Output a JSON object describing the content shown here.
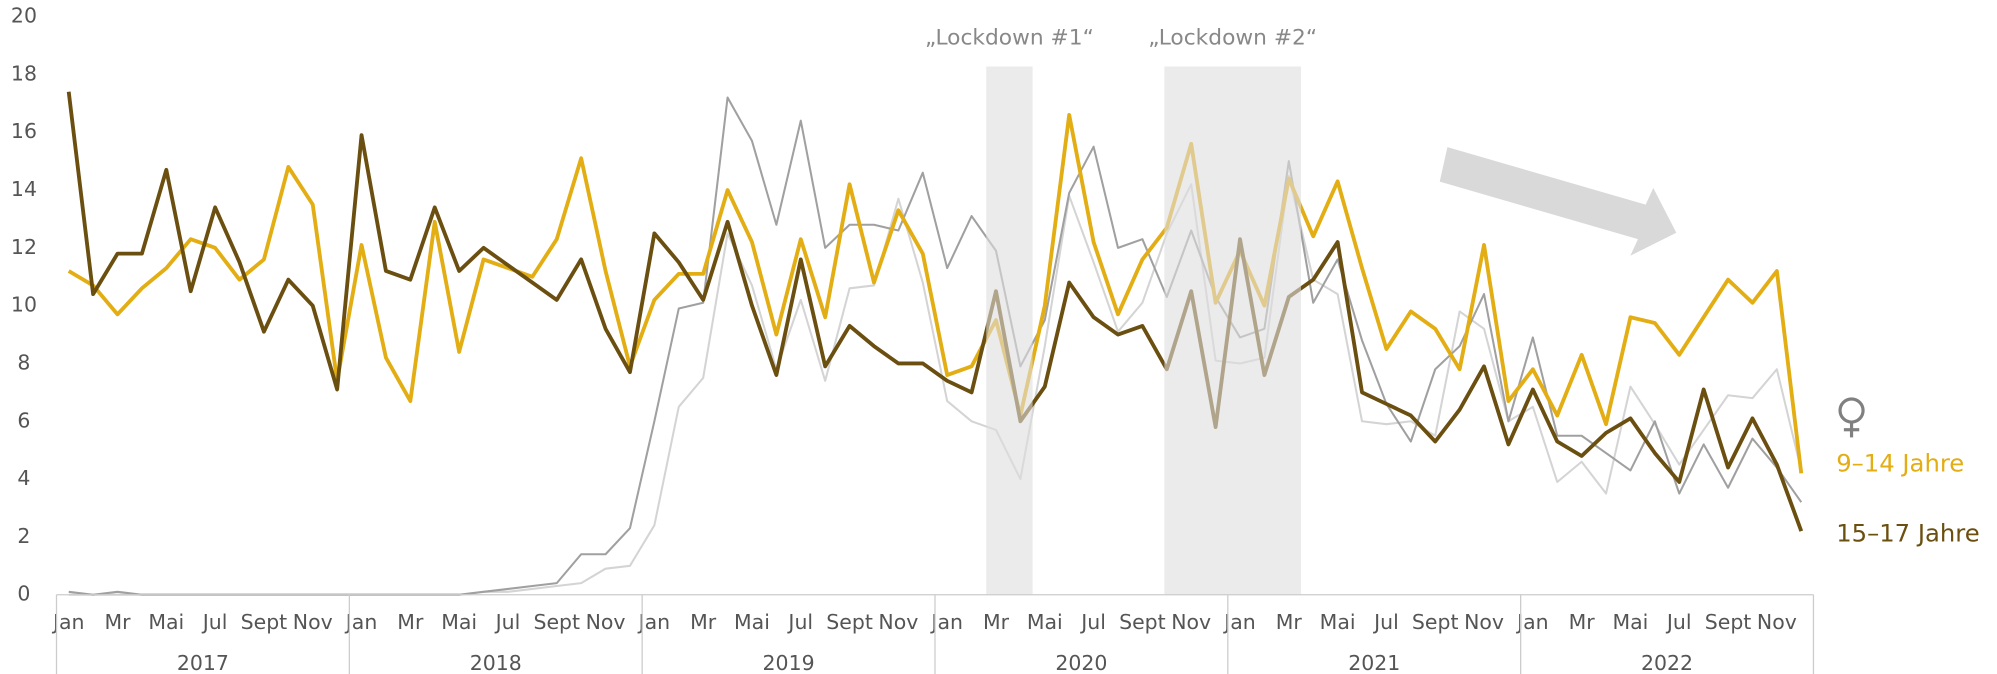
{
  "chart_data": {
    "type": "line",
    "categories": [
      "Jan",
      null,
      "Mr",
      null,
      "Mai",
      null,
      "Jul",
      null,
      "Sept",
      null,
      "Nov",
      null,
      "Jan",
      null,
      "Mr",
      null,
      "Mai",
      null,
      "Jul",
      null,
      "Sept",
      null,
      "Nov",
      null,
      "Jan",
      null,
      "Mr",
      null,
      "Mai",
      null,
      "Jul",
      null,
      "Sept",
      null,
      "Nov",
      null,
      "Jan",
      null,
      "Mr",
      null,
      "Mai",
      null,
      "Jul",
      null,
      "Sept",
      null,
      "Nov",
      null,
      "Jan",
      null,
      "Mr",
      null,
      "Mai",
      null,
      "Jul",
      null,
      "Sept",
      null,
      "Nov",
      null,
      "Jan",
      null,
      "Mr",
      null,
      "Mai",
      null,
      "Jul",
      null,
      "Sept",
      null,
      "Nov",
      null
    ],
    "years": [
      "2017",
      "2018",
      "2019",
      "2020",
      "2021",
      "2022"
    ],
    "ylim": [
      0,
      20
    ],
    "yticks": [
      0,
      2,
      4,
      6,
      8,
      10,
      12,
      14,
      16,
      18,
      20
    ],
    "shaded_regions": [
      {
        "label": "„Lockdown #1“",
        "start": 37.6,
        "end": 39.5
      },
      {
        "label": "„Lockdown #2“",
        "start": 44.9,
        "end": 50.5
      }
    ],
    "series": [
      {
        "color": "#d4d4d4",
        "values": [
          0,
          0,
          0,
          0,
          0,
          0,
          0,
          0,
          0,
          0,
          0,
          0,
          0,
          0,
          0,
          0,
          0,
          0.1,
          0.1,
          0.2,
          0.3,
          0.4,
          0.9,
          1.0,
          2.4,
          6.5,
          7.5,
          12.5,
          10.7,
          7.8,
          10.2,
          7.4,
          10.6,
          10.7,
          13.7,
          10.8,
          6.7,
          6.0,
          5.7,
          4.0,
          8.6,
          13.8,
          11.5,
          9.1,
          10.1,
          12.5,
          14.2,
          8.1,
          8.0,
          8.2,
          14.5,
          10.9,
          10.4,
          6.0,
          5.9,
          6.0,
          5.5,
          9.8,
          9.2,
          6.0,
          6.5,
          3.9,
          4.6,
          3.5,
          7.2,
          5.9,
          4.5,
          5.7,
          6.9,
          6.8,
          7.8,
          4.3
        ]
      },
      {
        "color": "#a0a0a0",
        "values": [
          0.1,
          0,
          0.1,
          0,
          0,
          0,
          0,
          0,
          0,
          0,
          0,
          0,
          0,
          0,
          0,
          0,
          0,
          0.1,
          0.2,
          0.3,
          0.4,
          1.4,
          1.4,
          2.3,
          6.0,
          9.9,
          10.1,
          17.2,
          15.7,
          12.8,
          16.4,
          12.0,
          12.8,
          12.8,
          12.6,
          14.6,
          11.3,
          13.1,
          11.9,
          7.9,
          9.5,
          13.9,
          15.5,
          12.0,
          12.3,
          10.3,
          12.6,
          10.3,
          8.9,
          9.2,
          15.0,
          10.1,
          11.6,
          8.8,
          6.6,
          5.3,
          7.8,
          8.6,
          10.4,
          6.0,
          8.9,
          5.5,
          5.5,
          4.9,
          4.3,
          6.0,
          3.5,
          5.2,
          3.7,
          5.4,
          4.4,
          3.2
        ]
      },
      {
        "name": "9–14 Jahre",
        "color": "#e3ad14",
        "values": [
          11.2,
          10.7,
          9.7,
          10.6,
          11.3,
          12.3,
          12.0,
          10.9,
          11.6,
          14.8,
          13.5,
          7.4,
          12.1,
          8.2,
          6.7,
          12.9,
          8.4,
          11.6,
          11.3,
          11.0,
          12.3,
          15.1,
          11.2,
          7.9,
          10.2,
          11.1,
          11.1,
          14.0,
          12.2,
          9.0,
          12.3,
          9.6,
          14.2,
          10.8,
          13.3,
          11.8,
          7.6,
          7.9,
          9.5,
          6.2,
          10.0,
          16.6,
          12.2,
          9.7,
          11.6,
          12.7,
          15.6,
          10.1,
          11.9,
          10.0,
          14.4,
          12.4,
          14.3,
          11.3,
          8.5,
          9.8,
          9.2,
          7.8,
          12.1,
          6.7,
          7.8,
          6.2,
          8.3,
          5.9,
          9.6,
          9.4,
          8.3,
          9.6,
          10.9,
          10.1,
          11.2,
          4.2
        ]
      },
      {
        "name": "15–17 Jahre",
        "color": "#6b4f10",
        "values": [
          17.4,
          10.4,
          11.8,
          11.8,
          14.7,
          10.5,
          13.4,
          11.5,
          9.1,
          10.9,
          10.0,
          7.1,
          15.9,
          11.2,
          10.9,
          13.4,
          11.2,
          12.0,
          11.4,
          10.8,
          10.2,
          11.6,
          9.2,
          7.7,
          12.5,
          11.5,
          10.2,
          12.9,
          10.0,
          7.6,
          11.6,
          7.9,
          9.3,
          8.6,
          8.0,
          8.0,
          7.4,
          7.0,
          10.5,
          6.0,
          7.2,
          10.8,
          9.6,
          9.0,
          9.3,
          7.8,
          10.5,
          5.8,
          12.3,
          7.6,
          10.3,
          10.9,
          12.2,
          7.0,
          6.6,
          6.2,
          5.3,
          6.4,
          7.9,
          5.2,
          7.1,
          5.3,
          4.8,
          5.6,
          6.1,
          4.9,
          3.9,
          7.1,
          4.4,
          6.1,
          4.5,
          2.2
        ]
      }
    ]
  }
}
